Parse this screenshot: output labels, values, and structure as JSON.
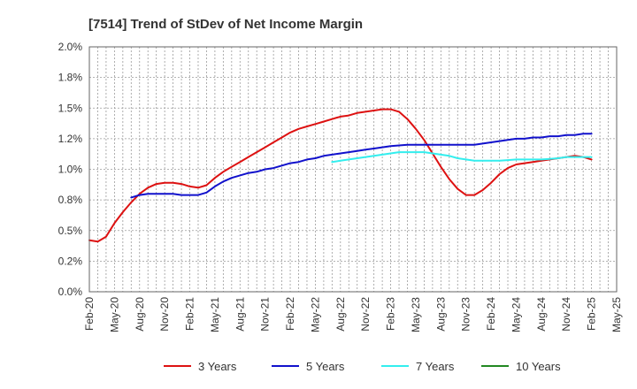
{
  "chart_data": {
    "type": "line",
    "title": "[7514]  Trend of StDev of Net Income Margin",
    "xlabel": "",
    "ylabel": "",
    "ylim": [
      0,
      2.0
    ],
    "y_ticks": [
      "0.0%",
      "0.2%",
      "0.5%",
      "0.8%",
      "1.0%",
      "1.2%",
      "1.5%",
      "1.8%",
      "2.0%"
    ],
    "x_ticks": [
      "Feb-20",
      "May-20",
      "Aug-20",
      "Nov-20",
      "Feb-21",
      "May-21",
      "Aug-21",
      "Nov-21",
      "Feb-22",
      "May-22",
      "Aug-22",
      "Nov-22",
      "Feb-23",
      "May-23",
      "Aug-23",
      "Nov-23",
      "Feb-24",
      "May-24",
      "Aug-24",
      "Nov-24",
      "Feb-25",
      "May-25"
    ],
    "grid": true,
    "legend_position": "bottom",
    "series": [
      {
        "name": "3 Years",
        "color": "#dd1111",
        "points": [
          [
            "2020-02",
            0.42
          ],
          [
            "2020-03",
            0.41
          ],
          [
            "2020-04",
            0.45
          ],
          [
            "2020-05",
            0.56
          ],
          [
            "2020-06",
            0.65
          ],
          [
            "2020-07",
            0.73
          ],
          [
            "2020-08",
            0.8
          ],
          [
            "2020-09",
            0.85
          ],
          [
            "2020-10",
            0.88
          ],
          [
            "2020-11",
            0.89
          ],
          [
            "2020-12",
            0.89
          ],
          [
            "2021-01",
            0.88
          ],
          [
            "2021-02",
            0.86
          ],
          [
            "2021-03",
            0.85
          ],
          [
            "2021-04",
            0.87
          ],
          [
            "2021-05",
            0.93
          ],
          [
            "2021-06",
            0.98
          ],
          [
            "2021-07",
            1.02
          ],
          [
            "2021-08",
            1.06
          ],
          [
            "2021-09",
            1.1
          ],
          [
            "2021-10",
            1.14
          ],
          [
            "2021-11",
            1.18
          ],
          [
            "2021-12",
            1.22
          ],
          [
            "2022-01",
            1.26
          ],
          [
            "2022-02",
            1.3
          ],
          [
            "2022-03",
            1.33
          ],
          [
            "2022-04",
            1.35
          ],
          [
            "2022-05",
            1.37
          ],
          [
            "2022-06",
            1.39
          ],
          [
            "2022-07",
            1.41
          ],
          [
            "2022-08",
            1.43
          ],
          [
            "2022-09",
            1.44
          ],
          [
            "2022-10",
            1.46
          ],
          [
            "2022-11",
            1.47
          ],
          [
            "2022-12",
            1.48
          ],
          [
            "2023-01",
            1.49
          ],
          [
            "2023-02",
            1.49
          ],
          [
            "2023-03",
            1.47
          ],
          [
            "2023-04",
            1.41
          ],
          [
            "2023-05",
            1.33
          ],
          [
            "2023-06",
            1.24
          ],
          [
            "2023-07",
            1.13
          ],
          [
            "2023-08",
            1.02
          ],
          [
            "2023-09",
            0.92
          ],
          [
            "2023-10",
            0.84
          ],
          [
            "2023-11",
            0.79
          ],
          [
            "2023-12",
            0.79
          ],
          [
            "2024-01",
            0.83
          ],
          [
            "2024-02",
            0.89
          ],
          [
            "2024-03",
            0.96
          ],
          [
            "2024-04",
            1.01
          ],
          [
            "2024-05",
            1.04
          ],
          [
            "2024-06",
            1.05
          ],
          [
            "2024-07",
            1.06
          ],
          [
            "2024-08",
            1.07
          ],
          [
            "2024-09",
            1.08
          ],
          [
            "2024-10",
            1.09
          ],
          [
            "2024-11",
            1.1
          ],
          [
            "2024-12",
            1.11
          ],
          [
            "2025-01",
            1.1
          ],
          [
            "2025-02",
            1.08
          ]
        ]
      },
      {
        "name": "5 Years",
        "color": "#1111cc",
        "points": [
          [
            "2020-07",
            0.77
          ],
          [
            "2020-08",
            0.79
          ],
          [
            "2020-09",
            0.8
          ],
          [
            "2020-10",
            0.8
          ],
          [
            "2020-11",
            0.8
          ],
          [
            "2020-12",
            0.8
          ],
          [
            "2021-01",
            0.79
          ],
          [
            "2021-02",
            0.79
          ],
          [
            "2021-03",
            0.79
          ],
          [
            "2021-04",
            0.81
          ],
          [
            "2021-05",
            0.86
          ],
          [
            "2021-06",
            0.9
          ],
          [
            "2021-07",
            0.93
          ],
          [
            "2021-08",
            0.95
          ],
          [
            "2021-09",
            0.97
          ],
          [
            "2021-10",
            0.98
          ],
          [
            "2021-11",
            1.0
          ],
          [
            "2021-12",
            1.01
          ],
          [
            "2022-01",
            1.03
          ],
          [
            "2022-02",
            1.05
          ],
          [
            "2022-03",
            1.06
          ],
          [
            "2022-04",
            1.08
          ],
          [
            "2022-05",
            1.09
          ],
          [
            "2022-06",
            1.11
          ],
          [
            "2022-07",
            1.12
          ],
          [
            "2022-08",
            1.13
          ],
          [
            "2022-09",
            1.14
          ],
          [
            "2022-10",
            1.15
          ],
          [
            "2022-11",
            1.16
          ],
          [
            "2022-12",
            1.17
          ],
          [
            "2023-01",
            1.18
          ],
          [
            "2023-02",
            1.19
          ],
          [
            "2023-03",
            1.195
          ],
          [
            "2023-04",
            1.2
          ],
          [
            "2023-05",
            1.2
          ],
          [
            "2023-06",
            1.2
          ],
          [
            "2023-07",
            1.2
          ],
          [
            "2023-08",
            1.2
          ],
          [
            "2023-09",
            1.2
          ],
          [
            "2023-10",
            1.2
          ],
          [
            "2023-11",
            1.2
          ],
          [
            "2023-12",
            1.2
          ],
          [
            "2024-01",
            1.21
          ],
          [
            "2024-02",
            1.22
          ],
          [
            "2024-03",
            1.23
          ],
          [
            "2024-04",
            1.24
          ],
          [
            "2024-05",
            1.25
          ],
          [
            "2024-06",
            1.25
          ],
          [
            "2024-07",
            1.26
          ],
          [
            "2024-08",
            1.26
          ],
          [
            "2024-09",
            1.27
          ],
          [
            "2024-10",
            1.27
          ],
          [
            "2024-11",
            1.28
          ],
          [
            "2024-12",
            1.28
          ],
          [
            "2025-01",
            1.29
          ],
          [
            "2025-02",
            1.29
          ]
        ]
      },
      {
        "name": "7 Years",
        "color": "#33eeee",
        "points": [
          [
            "2022-07",
            1.06
          ],
          [
            "2022-08",
            1.07
          ],
          [
            "2022-09",
            1.08
          ],
          [
            "2022-10",
            1.09
          ],
          [
            "2022-11",
            1.1
          ],
          [
            "2022-12",
            1.11
          ],
          [
            "2023-01",
            1.12
          ],
          [
            "2023-02",
            1.13
          ],
          [
            "2023-03",
            1.14
          ],
          [
            "2023-04",
            1.14
          ],
          [
            "2023-05",
            1.14
          ],
          [
            "2023-06",
            1.14
          ],
          [
            "2023-07",
            1.13
          ],
          [
            "2023-08",
            1.12
          ],
          [
            "2023-09",
            1.11
          ],
          [
            "2023-10",
            1.09
          ],
          [
            "2023-11",
            1.08
          ],
          [
            "2023-12",
            1.07
          ],
          [
            "2024-01",
            1.07
          ],
          [
            "2024-02",
            1.07
          ],
          [
            "2024-03",
            1.07
          ],
          [
            "2024-04",
            1.075
          ],
          [
            "2024-05",
            1.08
          ],
          [
            "2024-06",
            1.08
          ],
          [
            "2024-07",
            1.08
          ],
          [
            "2024-08",
            1.08
          ],
          [
            "2024-09",
            1.085
          ],
          [
            "2024-10",
            1.09
          ],
          [
            "2024-11",
            1.1
          ],
          [
            "2024-12",
            1.1
          ],
          [
            "2025-01",
            1.1
          ],
          [
            "2025-02",
            1.1
          ]
        ]
      },
      {
        "name": "10 Years",
        "color": "#228822",
        "points": []
      }
    ]
  }
}
